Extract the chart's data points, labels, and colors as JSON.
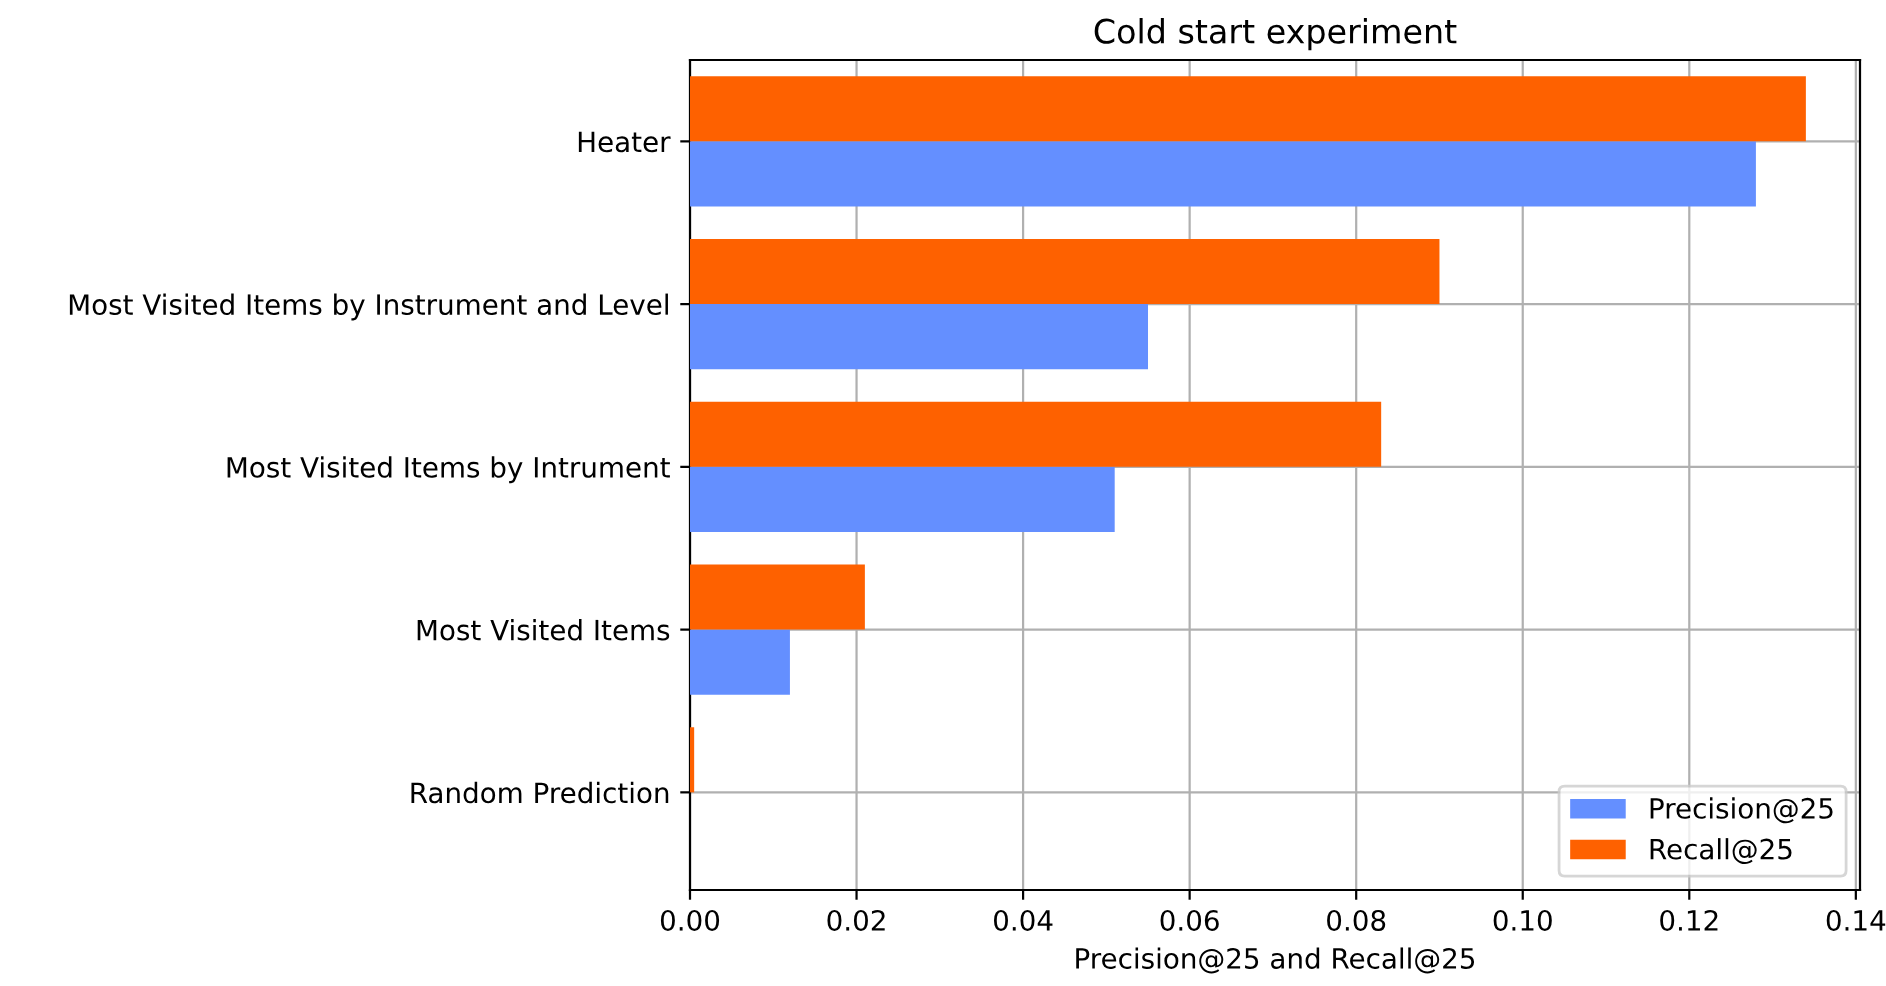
{
  "chart_data": {
    "type": "bar",
    "orientation": "horizontal",
    "title": "Cold start experiment",
    "xlabel": "Precision@25 and Recall@25",
    "categories": [
      "Heater",
      "Most Visited Items by Instrument and Level",
      "Most Visited Items by Intrument",
      "Most Visited Items",
      "Random Prediction"
    ],
    "series": [
      {
        "name": "Precision@25",
        "color": "#648fff",
        "values": [
          0.128,
          0.055,
          0.051,
          0.012,
          0.0
        ]
      },
      {
        "name": "Recall@25",
        "color": "#fe6100",
        "values": [
          0.134,
          0.09,
          0.083,
          0.021,
          0.0005
        ]
      }
    ],
    "xlim": [
      0,
      0.1405
    ],
    "xticks": [
      {
        "value": 0,
        "label": "0.00"
      },
      {
        "value": 0.02,
        "label": "0.02"
      },
      {
        "value": 0.04,
        "label": "0.04"
      },
      {
        "value": 0.06,
        "label": "0.06"
      },
      {
        "value": 0.08,
        "label": "0.08"
      },
      {
        "value": 0.1,
        "label": "0.10"
      },
      {
        "value": 0.12,
        "label": "0.12"
      },
      {
        "value": 0.14,
        "label": "0.14"
      }
    ],
    "grid": true,
    "legend": "lower right"
  }
}
